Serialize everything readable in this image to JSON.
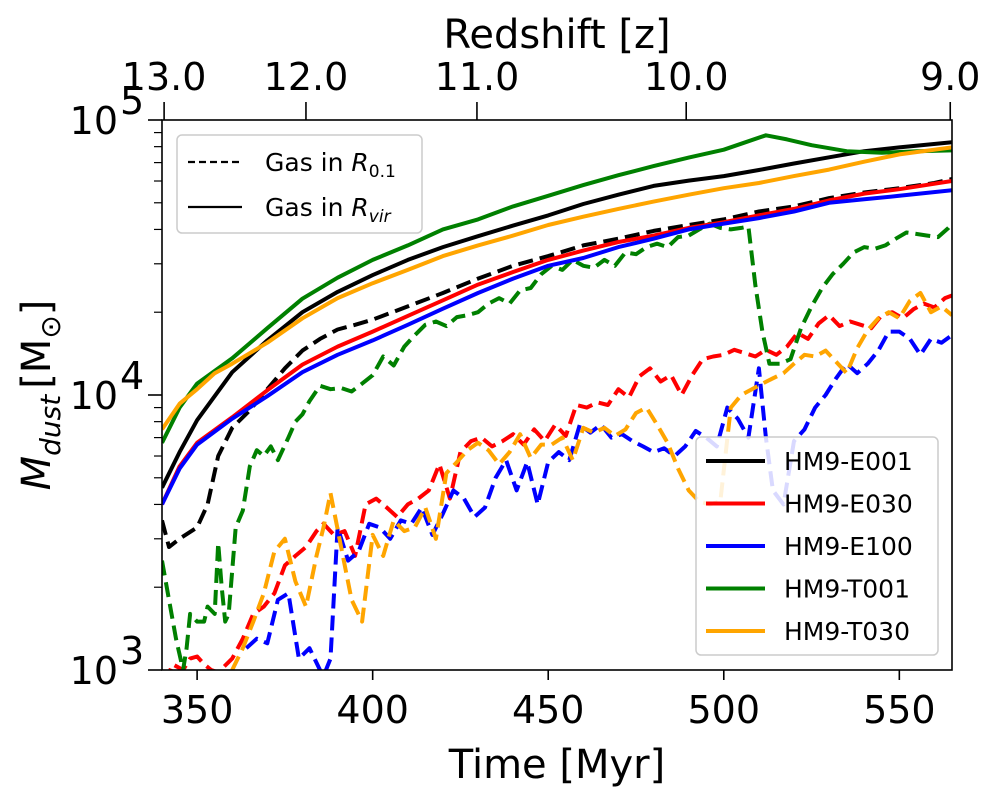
{
  "chart_data": {
    "type": "line",
    "xlabel": "Time [Myr]",
    "x2label": "Redshift [z]",
    "ylabel_text": "M",
    "ylabel_sub": "dust",
    "ylabel_unit_text": "[M",
    "ylabel_unit_sub": "⊙",
    "ylabel_unit_close": "]",
    "xlim": [
      340,
      565
    ],
    "ylim": [
      1000,
      100000
    ],
    "yscale": "log",
    "x_ticks": [
      350,
      400,
      450,
      500,
      550
    ],
    "x_tick_labels": [
      "350",
      "400",
      "450",
      "500",
      "550"
    ],
    "y_ticks": [
      1000,
      10000,
      100000
    ],
    "y_tick_labels": [
      {
        "base": "10",
        "exp": "3"
      },
      {
        "base": "10",
        "exp": "4"
      },
      {
        "base": "10",
        "exp": "5"
      }
    ],
    "top_ticks": [
      {
        "x": 340.6,
        "label": "13.0"
      },
      {
        "x": 381,
        "label": "12.0"
      },
      {
        "x": 429.7,
        "label": "11.0"
      },
      {
        "x": 489.3,
        "label": "10.0"
      },
      {
        "x": 564.5,
        "label": "9.0"
      }
    ],
    "style_legend": {
      "position": "upper-left",
      "entries": [
        {
          "label": "Gas in ",
          "math": "R",
          "sub": "0.1",
          "linestyle": "dashed"
        },
        {
          "label": "Gas in ",
          "math": "R",
          "sub": "vir",
          "linestyle": "solid"
        }
      ]
    },
    "series_legend": {
      "position": "lower-right",
      "entries": [
        "HM9-E001",
        "HM9-E030",
        "HM9-E100",
        "HM9-T001",
        "HM9-T030"
      ]
    },
    "series": [
      {
        "name": "HM9-E001",
        "variant": "vir",
        "color": "#000000",
        "x": [
          340,
          345,
          350,
          360,
          370,
          380,
          390,
          400,
          410,
          420,
          430,
          440,
          450,
          460,
          470,
          480,
          490,
          500,
          510,
          520,
          530,
          540,
          550,
          565
        ],
        "y": [
          4600,
          6200,
          8100,
          12100,
          15800,
          20000,
          23700,
          27300,
          31000,
          34500,
          37800,
          41300,
          45000,
          49500,
          53500,
          57600,
          60200,
          62500,
          65800,
          69500,
          73200,
          77000,
          79500,
          83000
        ]
      },
      {
        "name": "HM9-E030",
        "variant": "vir",
        "color": "#ff0000",
        "x": [
          340,
          345,
          350,
          360,
          370,
          380,
          390,
          400,
          410,
          420,
          430,
          440,
          450,
          460,
          470,
          480,
          490,
          500,
          510,
          520,
          530,
          540,
          550,
          565
        ],
        "y": [
          4000,
          5500,
          6700,
          8300,
          10400,
          12900,
          15000,
          17000,
          19400,
          22100,
          25200,
          28000,
          31000,
          33500,
          36000,
          38000,
          40500,
          42500,
          45000,
          47500,
          51000,
          54000,
          56000,
          60000
        ]
      },
      {
        "name": "HM9-E100",
        "variant": "vir",
        "color": "#0000ff",
        "x": [
          340,
          345,
          350,
          360,
          370,
          380,
          390,
          400,
          410,
          420,
          430,
          440,
          450,
          460,
          470,
          480,
          490,
          500,
          510,
          520,
          530,
          540,
          550,
          565
        ],
        "y": [
          4000,
          5400,
          6600,
          8200,
          9900,
          12100,
          14000,
          15800,
          18000,
          20600,
          23500,
          26500,
          29500,
          31500,
          34500,
          37000,
          40000,
          42000,
          44000,
          46500,
          50000,
          51500,
          53000,
          55500
        ]
      },
      {
        "name": "HM9-T001",
        "variant": "vir",
        "color": "#008000",
        "x": [
          340,
          345,
          350,
          360,
          370,
          380,
          390,
          400,
          410,
          420,
          430,
          440,
          450,
          460,
          470,
          480,
          490,
          500,
          505,
          512,
          518,
          525,
          535,
          545,
          555,
          565
        ],
        "y": [
          6700,
          9000,
          11000,
          13600,
          17500,
          22400,
          26700,
          31000,
          35000,
          40000,
          43500,
          48500,
          53000,
          58000,
          63000,
          68000,
          73000,
          78000,
          82000,
          88000,
          85000,
          81000,
          77000,
          76000,
          77000,
          77500
        ]
      },
      {
        "name": "HM9-T030",
        "variant": "vir",
        "color": "#ffa500",
        "x": [
          340,
          345,
          350,
          355,
          360,
          370,
          380,
          390,
          400,
          410,
          420,
          430,
          440,
          450,
          460,
          470,
          480,
          490,
          500,
          510,
          520,
          530,
          540,
          550,
          565
        ],
        "y": [
          7500,
          9300,
          10500,
          12000,
          13000,
          15500,
          19000,
          22500,
          25500,
          28500,
          32000,
          35000,
          38000,
          41500,
          44500,
          47500,
          50500,
          53500,
          56500,
          59000,
          62500,
          66000,
          70500,
          75000,
          79500
        ]
      },
      {
        "name": "HM9-E001",
        "variant": "r01",
        "color": "#000000",
        "x": [
          340,
          342,
          345,
          350,
          353,
          356,
          360,
          365,
          370,
          375,
          380,
          385,
          390,
          395,
          400,
          410,
          420,
          430,
          440,
          450,
          460,
          470,
          480,
          490,
          500,
          510,
          520,
          530,
          540,
          550,
          560,
          565
        ],
        "y": [
          3500,
          2800,
          3000,
          3300,
          4000,
          6000,
          7600,
          8800,
          10500,
          12500,
          14500,
          16000,
          17300,
          18000,
          18800,
          21000,
          23500,
          26500,
          29500,
          32000,
          35000,
          37000,
          39500,
          41500,
          43500,
          46500,
          48500,
          52000,
          54500,
          56500,
          59000,
          61000
        ]
      },
      {
        "name": "HM9-E030",
        "variant": "r01",
        "color": "#ff0000",
        "x": [
          341,
          343,
          346,
          348,
          350,
          352,
          354,
          356,
          360,
          363,
          366,
          369,
          372,
          375,
          378,
          381,
          384,
          386,
          389,
          392,
          395,
          398,
          401,
          404,
          407,
          410,
          413,
          416,
          419,
          422,
          425,
          428,
          431,
          434,
          437,
          440,
          443,
          446,
          449,
          452,
          455,
          458,
          461,
          464,
          467,
          470,
          473,
          476,
          479,
          482,
          485,
          488,
          491,
          494,
          497,
          500,
          503,
          506,
          509,
          512,
          515,
          518,
          521,
          524,
          527,
          530,
          533,
          536,
          539,
          542,
          545,
          548,
          551,
          554,
          557,
          560,
          563,
          565
        ],
        "y": [
          900,
          1050,
          1000,
          1100,
          1120,
          1050,
          1000,
          980,
          1100,
          1300,
          1600,
          1700,
          1900,
          2400,
          2600,
          2800,
          3200,
          3400,
          3100,
          3200,
          2600,
          4000,
          4200,
          3900,
          3600,
          4000,
          4200,
          4500,
          5600,
          4200,
          6200,
          6800,
          7000,
          6500,
          6800,
          7200,
          6600,
          7500,
          6800,
          7800,
          7100,
          9200,
          9000,
          9400,
          9200,
          10500,
          9800,
          11700,
          12500,
          11200,
          11800,
          10000,
          11800,
          13500,
          13800,
          14000,
          14600,
          14200,
          13800,
          14600,
          14000,
          15000,
          16800,
          16000,
          18200,
          19500,
          17800,
          18500,
          18000,
          17500,
          19500,
          20000,
          19000,
          20500,
          21500,
          20800,
          22500,
          23000
        ]
      },
      {
        "name": "HM9-E100",
        "variant": "r01",
        "color": "#0000ff",
        "x": [
          364,
          367,
          370,
          373,
          376,
          379,
          382,
          385,
          386,
          388,
          390,
          393,
          396,
          399,
          402,
          405,
          408,
          411,
          414,
          417,
          420,
          423,
          426,
          429,
          432,
          435,
          438,
          441,
          444,
          447,
          450,
          453,
          456,
          459,
          462,
          465,
          468,
          471,
          474,
          477,
          480,
          483,
          486,
          489,
          492,
          495,
          498,
          501,
          504,
          507,
          510,
          512,
          514,
          517,
          520,
          523,
          526,
          529,
          532,
          535,
          538,
          541,
          544,
          547,
          550,
          553,
          556,
          559,
          562,
          565
        ],
        "y": [
          1200,
          1300,
          1250,
          1800,
          1900,
          1100,
          1200,
          1000,
          950,
          1100,
          3300,
          2500,
          2700,
          3400,
          3300,
          3000,
          3500,
          3400,
          3900,
          3100,
          3700,
          4500,
          4200,
          3600,
          3900,
          5000,
          5800,
          4500,
          5700,
          4000,
          5700,
          6200,
          5800,
          7800,
          7300,
          7800,
          7000,
          7200,
          6800,
          6500,
          6200,
          6400,
          6000,
          6500,
          7400,
          7000,
          6500,
          9000,
          8200,
          7000,
          12500,
          7000,
          4500,
          4000,
          6800,
          7500,
          9000,
          10000,
          11500,
          13000,
          12000,
          13000,
          14500,
          17000,
          17000,
          16000,
          14000,
          16000,
          15500,
          16500
        ]
      },
      {
        "name": "HM9-T001",
        "variant": "r01",
        "color": "#008000",
        "x": [
          340,
          342,
          344,
          346,
          347,
          348,
          350,
          352,
          353,
          355,
          356,
          357,
          358,
          359,
          361,
          363,
          365,
          367,
          369,
          371,
          373,
          376,
          378,
          380,
          382,
          385,
          388,
          391,
          394,
          397,
          400,
          403,
          406,
          409,
          412,
          415,
          418,
          421,
          424,
          427,
          430,
          433,
          436,
          439,
          442,
          445,
          448,
          451,
          454,
          457,
          460,
          463,
          466,
          469,
          472,
          475,
          478,
          481,
          484,
          487,
          490,
          493,
          496,
          499,
          502,
          505,
          507,
          509,
          511,
          513,
          516,
          519,
          522,
          525,
          528,
          531,
          534,
          537,
          540,
          543,
          546,
          549,
          552,
          555,
          558,
          561,
          564,
          565
        ],
        "y": [
          2500,
          1800,
          1300,
          1000,
          1200,
          1600,
          1500,
          1500,
          1700,
          1600,
          2900,
          2000,
          1500,
          1600,
          3300,
          3800,
          5500,
          6300,
          6000,
          6500,
          5800,
          7000,
          8000,
          8500,
          9500,
          10800,
          10500,
          10600,
          10300,
          11000,
          11800,
          13800,
          12800,
          15000,
          16500,
          18000,
          18500,
          17800,
          19200,
          19500,
          20000,
          21500,
          22500,
          21500,
          24000,
          24500,
          27500,
          29500,
          28500,
          31000,
          29500,
          29000,
          31000,
          29500,
          33000,
          32500,
          34500,
          35500,
          34500,
          37500,
          38000,
          40000,
          42000,
          40500,
          40000,
          40500,
          41000,
          25000,
          17000,
          13000,
          13000,
          13500,
          17500,
          21000,
          24500,
          27500,
          30000,
          33000,
          34500,
          34000,
          35000,
          37000,
          39000,
          38500,
          38000,
          37500,
          40500,
          42000
        ]
      },
      {
        "name": "HM9-T030",
        "variant": "r01",
        "color": "#ffa500",
        "x": [
          360,
          363,
          366,
          369,
          372,
          375,
          378,
          381,
          384,
          386,
          388,
          391,
          394,
          397,
          400,
          403,
          406,
          409,
          412,
          415,
          418,
          421,
          424,
          427,
          430,
          433,
          436,
          439,
          442,
          445,
          448,
          451,
          454,
          457,
          460,
          463,
          466,
          469,
          472,
          475,
          478,
          481,
          484,
          487,
          490,
          493,
          496,
          499,
          502,
          505,
          508,
          511,
          514,
          517,
          520,
          523,
          526,
          529,
          532,
          535,
          538,
          541,
          544,
          547,
          550,
          553,
          556,
          559,
          562,
          565
        ],
        "y": [
          1000,
          1200,
          1500,
          1900,
          2700,
          3000,
          2100,
          1700,
          2600,
          3300,
          4400,
          2800,
          1800,
          1500,
          3100,
          2600,
          3500,
          3200,
          3300,
          3900,
          3000,
          5200,
          5700,
          6300,
          6700,
          6300,
          5600,
          6200,
          7200,
          5900,
          6600,
          6600,
          7000,
          5800,
          7600,
          7300,
          7600,
          7100,
          7500,
          8600,
          9000,
          7800,
          6700,
          5400,
          4500,
          4100,
          4000,
          4100,
          9000,
          10000,
          10500,
          11000,
          11500,
          12000,
          13000,
          14000,
          13800,
          14500,
          13200,
          12000,
          14800,
          17200,
          19000,
          20000,
          19000,
          22000,
          23500,
          20000,
          21000,
          19500
        ]
      }
    ]
  }
}
